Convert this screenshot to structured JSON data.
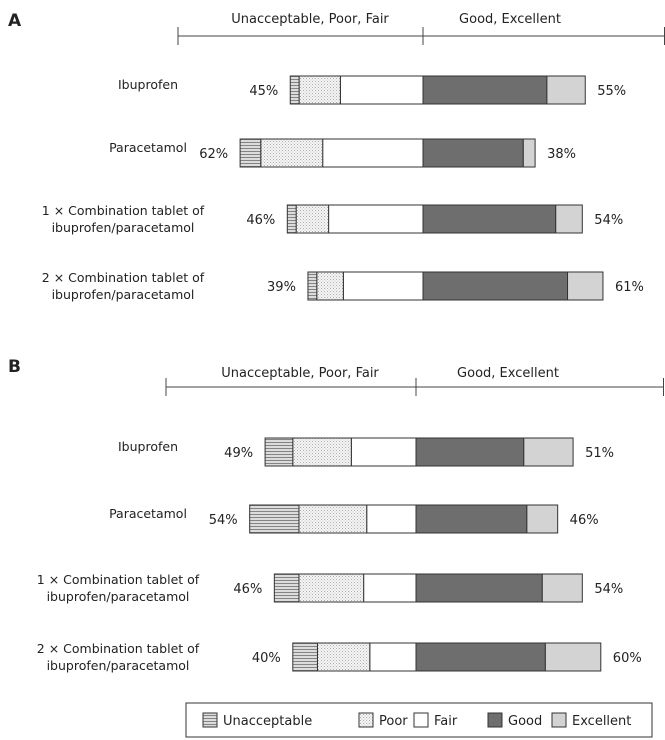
{
  "colors": {
    "Unacceptable": "#c4c4c4",
    "Poor": "#e8e8e8",
    "Fair": "#ffffff",
    "Good": "#6e6e6e",
    "Excellent": "#d3d3d3"
  },
  "legend": [
    "Unacceptable",
    "Poor",
    "Fair",
    "Good",
    "Excellent"
  ],
  "chart_data": [
    {
      "type": "bar",
      "panel": "A",
      "header_left": "Unacceptable, Poor, Fair",
      "header_right": "Good, Excellent",
      "categories": [
        [
          "Ibuprofen"
        ],
        [
          "Paracetamol"
        ],
        [
          "1 × Combination tablet of",
          "ibuprofen/paracetamol"
        ],
        [
          "2 × Combination tablet of",
          "ibuprofen/paracetamol"
        ]
      ],
      "negative_total_labels": [
        "45%",
        "62%",
        "46%",
        "39%"
      ],
      "positive_total_labels": [
        "55%",
        "38%",
        "54%",
        "61%"
      ],
      "series": [
        {
          "name": "Unacceptable",
          "values": [
            3,
            7,
            3,
            3
          ]
        },
        {
          "name": "Poor",
          "values": [
            14,
            21,
            11,
            9
          ]
        },
        {
          "name": "Fair",
          "values": [
            28,
            34,
            32,
            27
          ]
        },
        {
          "name": "Good",
          "values": [
            42,
            34,
            45,
            49
          ]
        },
        {
          "name": "Excellent",
          "values": [
            13,
            4,
            9,
            12
          ]
        }
      ]
    },
    {
      "type": "bar",
      "panel": "B",
      "header_left": "Unacceptable, Poor, Fair",
      "header_right": "Good, Excellent",
      "categories": [
        [
          "Ibuprofen"
        ],
        [
          "Paracetamol"
        ],
        [
          "1 × Combination tablet of",
          "ibuprofen/paracetamol"
        ],
        [
          "2 × Combination tablet of",
          "ibuprofen/paracetamol"
        ]
      ],
      "negative_total_labels": [
        "49%",
        "54%",
        "46%",
        "40%"
      ],
      "positive_total_labels": [
        "51%",
        "46%",
        "54%",
        "60%"
      ],
      "series": [
        {
          "name": "Unacceptable",
          "values": [
            9,
            16,
            8,
            8
          ]
        },
        {
          "name": "Poor",
          "values": [
            19,
            22,
            21,
            17
          ]
        },
        {
          "name": "Fair",
          "values": [
            21,
            16,
            17,
            15
          ]
        },
        {
          "name": "Good",
          "values": [
            35,
            36,
            41,
            42
          ]
        },
        {
          "name": "Excellent",
          "values": [
            16,
            10,
            13,
            18
          ]
        }
      ]
    }
  ]
}
